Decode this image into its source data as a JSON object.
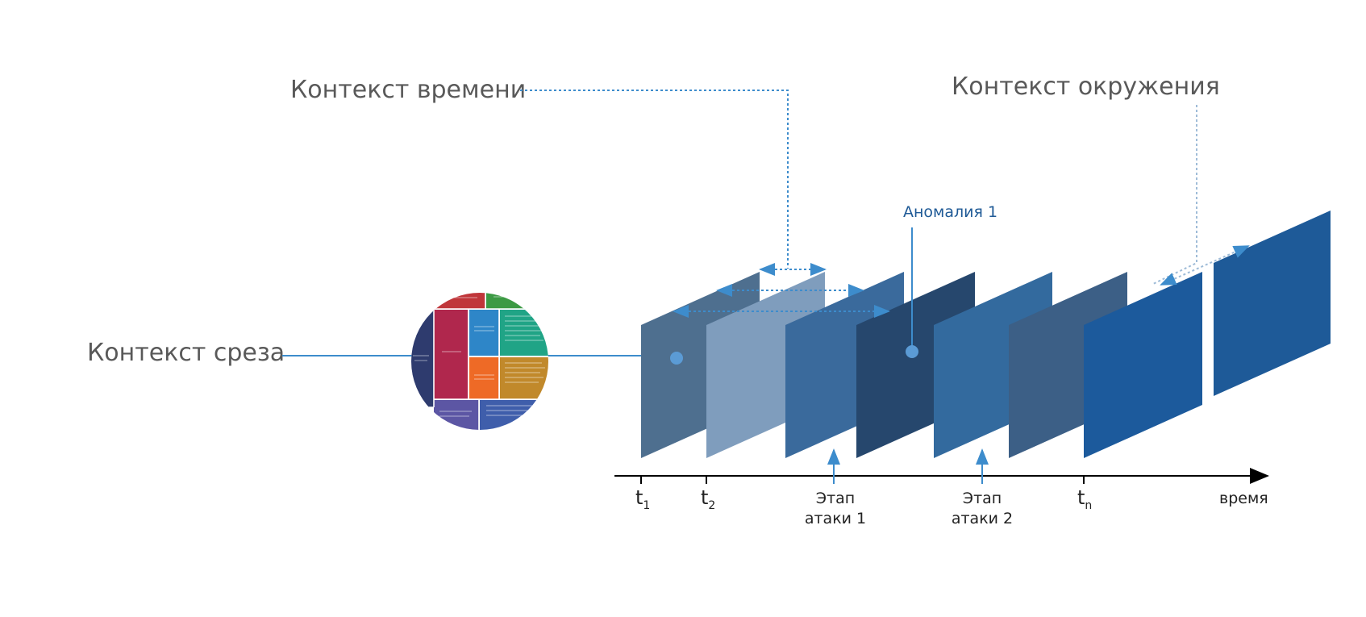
{
  "labels": {
    "time_context": "Контекст времени",
    "env_context": "Контекст окружения",
    "slice_context": "Контекст среза",
    "anomaly": "Аномалия 1",
    "axis": "время",
    "stage1_line1": "Этап",
    "stage1_line2": "атаки 1",
    "stage2_line1": "Этап",
    "stage2_line2": "атаки 2"
  },
  "ticks": [
    {
      "base": "t",
      "sub": "1"
    },
    {
      "base": "t",
      "sub": "2"
    },
    {
      "base": "t",
      "sub": "n"
    }
  ],
  "colors": {
    "slice_a": "#4e6f8f",
    "slice_b": "#7f9dbd",
    "slice_c": "#3a6a9c",
    "slice_d": "#26476d",
    "slice_e": "#336a9e",
    "slice_f": "#3c5f86",
    "slice_g": "#1c5a9c",
    "slice_h": "#1e5a98",
    "connector": "#3d8ccc",
    "accent_text": "#1f5a96"
  }
}
